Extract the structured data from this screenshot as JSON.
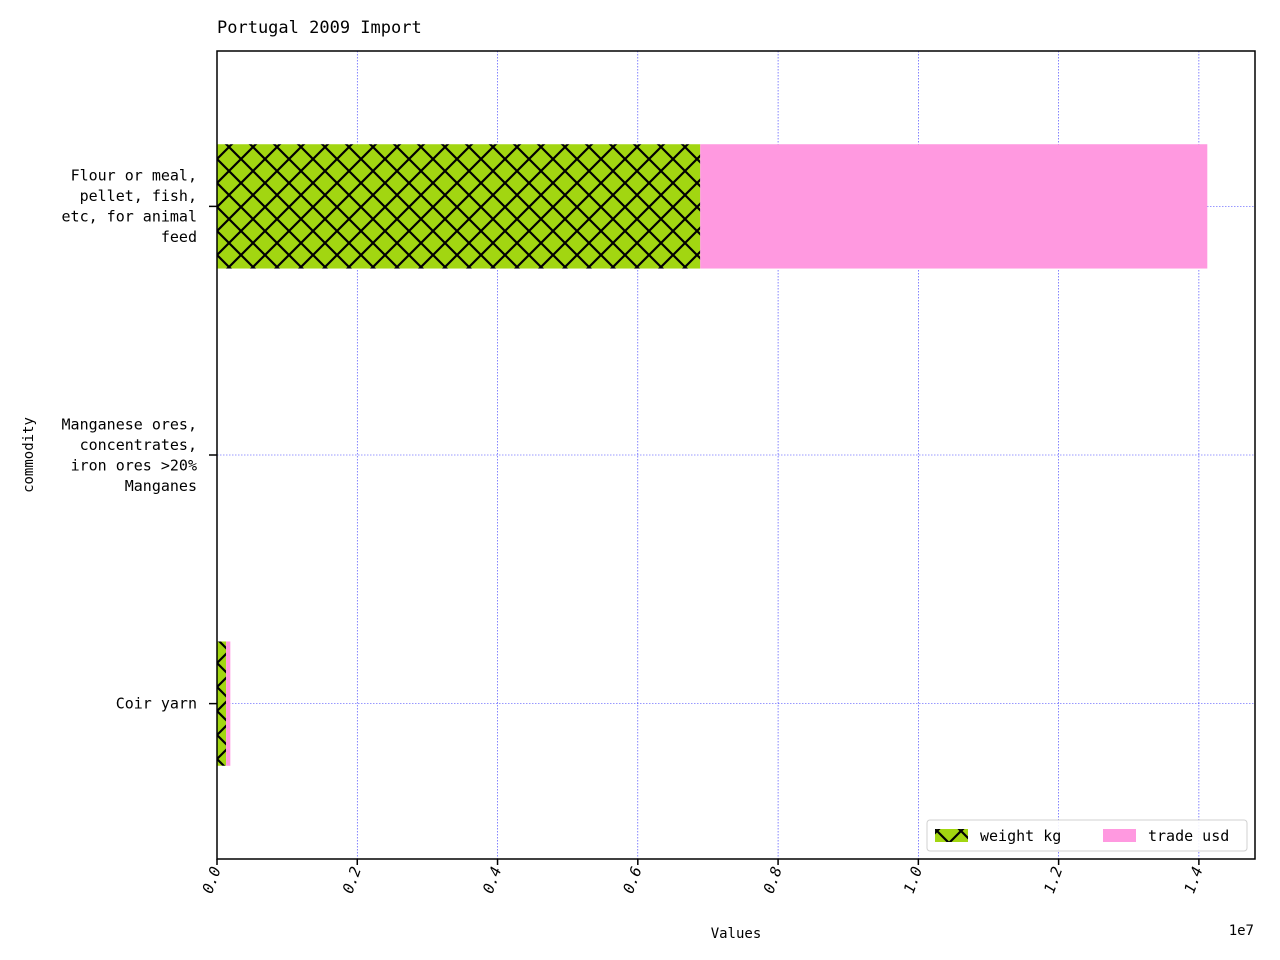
{
  "chart_data": {
    "type": "bar",
    "orientation": "horizontal",
    "stacked": true,
    "title": "Portugal 2009 Import",
    "xlabel": "Values",
    "ylabel": "commodity",
    "x_scale_label": "1e7",
    "xlim": [
      0,
      14800000
    ],
    "x_ticks": [
      0,
      2000000,
      4000000,
      6000000,
      8000000,
      10000000,
      12000000,
      14000000
    ],
    "x_tick_labels": [
      "0.0",
      "0.2",
      "0.4",
      "0.6",
      "0.8",
      "1.0",
      "1.2",
      "1.4"
    ],
    "grid": true,
    "legend_position": "lower-right",
    "categories": [
      [
        "Flour or meal,",
        "pellet, fish,",
        "etc, for animal",
        "feed"
      ],
      [
        "Manganese ores,",
        "concentrates,",
        "iron ores >20%",
        "Manganes"
      ],
      [
        "Coir yarn"
      ]
    ],
    "series": [
      {
        "name": "weight kg",
        "color": "#a2d611",
        "hatch": "cross",
        "values": [
          6890000,
          0,
          130000
        ]
      },
      {
        "name": "trade usd",
        "color": "#ff99e0",
        "hatch": "none",
        "values": [
          7230000,
          0,
          60000
        ]
      }
    ]
  }
}
